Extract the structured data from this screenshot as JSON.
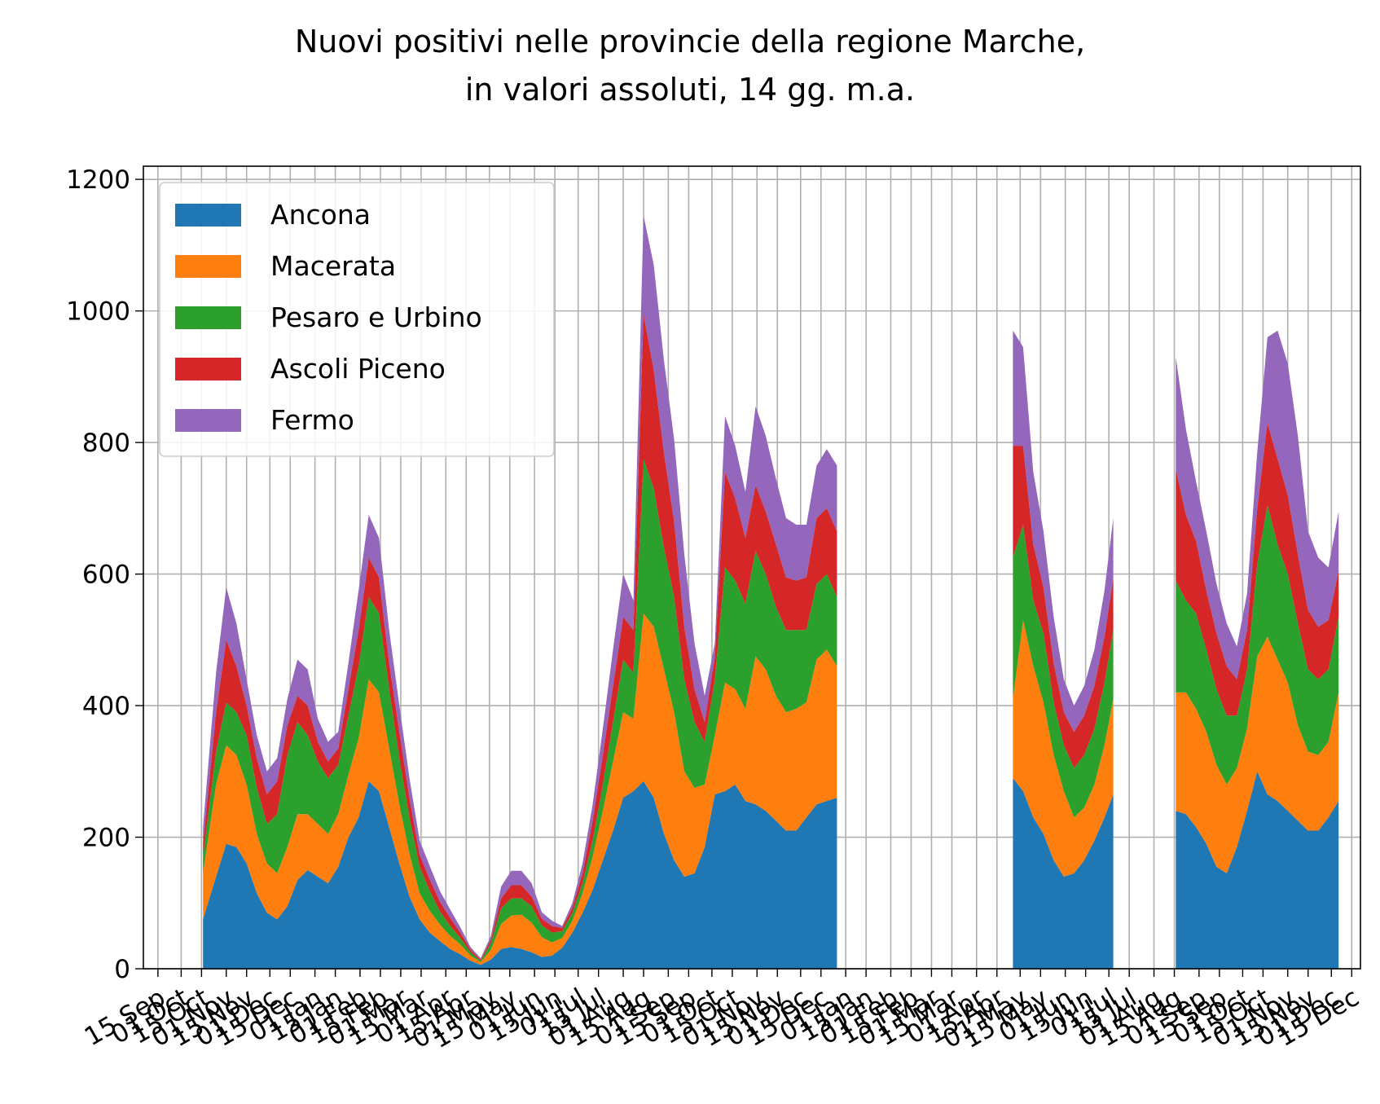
{
  "chart_data": {
    "type": "area",
    "stacked": true,
    "title": [
      "Nuovi positivi nelle provincie della regione Marche,",
      "in valori assoluti, 14 gg. m.a."
    ],
    "xlabel": "",
    "ylabel": "",
    "ylim": [
      0,
      1220
    ],
    "yticks": [
      0,
      200,
      400,
      600,
      800,
      1000,
      1200
    ],
    "xlim": [
      "2020-09-05",
      "2022-12-21"
    ],
    "grid": true,
    "legend_position": "upper-left",
    "x_ticks": [
      {
        "date": "2020-09-15",
        "label": "15 Sep"
      },
      {
        "date": "2020-10-01",
        "label": "01 Oct"
      },
      {
        "date": "2020-10-15",
        "label": "15 Oct"
      },
      {
        "date": "2020-11-01",
        "label": "01 Nov"
      },
      {
        "date": "2020-11-15",
        "label": "15 Nov"
      },
      {
        "date": "2020-12-01",
        "label": "01 Dec"
      },
      {
        "date": "2020-12-15",
        "label": "15 Dec"
      },
      {
        "date": "2021-01-01",
        "label": "01 Jan"
      },
      {
        "date": "2021-01-15",
        "label": "15 Jan"
      },
      {
        "date": "2021-02-01",
        "label": "01 Feb"
      },
      {
        "date": "2021-02-15",
        "label": "15 Feb"
      },
      {
        "date": "2021-03-01",
        "label": "01 Mar"
      },
      {
        "date": "2021-03-15",
        "label": "15 Mar"
      },
      {
        "date": "2021-04-01",
        "label": "01 Apr"
      },
      {
        "date": "2021-04-15",
        "label": "15 Apr"
      },
      {
        "date": "2021-05-01",
        "label": "01 May"
      },
      {
        "date": "2021-05-15",
        "label": "15 May"
      },
      {
        "date": "2021-06-01",
        "label": "01 Jun"
      },
      {
        "date": "2021-06-15",
        "label": "15 Jun"
      },
      {
        "date": "2021-07-01",
        "label": "01 Jul"
      },
      {
        "date": "2021-07-15",
        "label": "15 Jul"
      },
      {
        "date": "2021-08-01",
        "label": "01 Aug"
      },
      {
        "date": "2021-08-15",
        "label": "15 Aug"
      },
      {
        "date": "2021-09-01",
        "label": "01 Sep"
      },
      {
        "date": "2021-09-15",
        "label": "15 Sep"
      },
      {
        "date": "2021-10-01",
        "label": "01 Oct"
      },
      {
        "date": "2021-10-15",
        "label": "15 Oct"
      },
      {
        "date": "2021-11-01",
        "label": "01 Nov"
      },
      {
        "date": "2021-11-15",
        "label": "15 Nov"
      },
      {
        "date": "2021-12-01",
        "label": "01 Dec"
      },
      {
        "date": "2021-12-15",
        "label": "15 Dec"
      },
      {
        "date": "2022-01-01",
        "label": "01 Jan"
      },
      {
        "date": "2022-01-15",
        "label": "15 Jan"
      },
      {
        "date": "2022-02-01",
        "label": "01 Feb"
      },
      {
        "date": "2022-02-15",
        "label": "15 Feb"
      },
      {
        "date": "2022-03-01",
        "label": "01 Mar"
      },
      {
        "date": "2022-03-15",
        "label": "15 Mar"
      },
      {
        "date": "2022-04-01",
        "label": "01 Apr"
      },
      {
        "date": "2022-04-15",
        "label": "15 Apr"
      },
      {
        "date": "2022-05-01",
        "label": "01 May"
      },
      {
        "date": "2022-05-15",
        "label": "15 May"
      },
      {
        "date": "2022-06-01",
        "label": "01 Jun"
      },
      {
        "date": "2022-06-15",
        "label": "15 Jun"
      },
      {
        "date": "2022-07-01",
        "label": "01 Jul"
      },
      {
        "date": "2022-07-15",
        "label": "15 Jul"
      },
      {
        "date": "2022-08-01",
        "label": "01 Aug"
      },
      {
        "date": "2022-08-15",
        "label": "15 Aug"
      },
      {
        "date": "2022-09-01",
        "label": "01 Sep"
      },
      {
        "date": "2022-09-15",
        "label": "15 Sep"
      },
      {
        "date": "2022-10-01",
        "label": "01 Oct"
      },
      {
        "date": "2022-10-15",
        "label": "15 Oct"
      },
      {
        "date": "2022-11-01",
        "label": "01 Nov"
      },
      {
        "date": "2022-11-15",
        "label": "15 Nov"
      },
      {
        "date": "2022-12-01",
        "label": "01 Dec"
      },
      {
        "date": "2022-12-15",
        "label": "15 Dec"
      }
    ],
    "x": [
      "2020-10-16",
      "2020-10-25",
      "2020-11-01",
      "2020-11-08",
      "2020-11-15",
      "2020-11-22",
      "2020-11-29",
      "2020-12-06",
      "2020-12-13",
      "2020-12-20",
      "2020-12-27",
      "2021-01-03",
      "2021-01-10",
      "2021-01-17",
      "2021-01-24",
      "2021-01-31",
      "2021-02-07",
      "2021-02-14",
      "2021-02-21",
      "2021-02-28",
      "2021-03-07",
      "2021-03-14",
      "2021-03-21",
      "2021-03-28",
      "2021-04-04",
      "2021-04-11",
      "2021-04-18",
      "2021-04-25",
      "2021-05-02",
      "2021-05-09",
      "2021-05-16",
      "2021-05-23",
      "2021-05-30",
      "2021-06-06",
      "2021-06-13",
      "2021-06-20",
      "2021-06-27",
      "2021-07-04",
      "2021-07-11",
      "2021-07-18",
      "2021-07-25",
      "2021-08-01",
      "2021-08-08",
      "2021-08-15",
      "2021-08-22",
      "2021-08-29",
      "2021-09-05",
      "2021-09-12",
      "2021-09-19",
      "2021-09-26",
      "2021-10-03",
      "2021-10-10",
      "2021-10-17",
      "2021-10-24",
      "2021-10-31",
      "2021-11-07",
      "2021-11-14",
      "2021-11-21",
      "2021-11-28",
      "2021-12-05",
      "2021-12-12",
      "2021-12-19",
      "2021-12-26",
      "2022-04-26",
      "2022-05-03",
      "2022-05-10",
      "2022-05-17",
      "2022-05-24",
      "2022-05-31",
      "2022-06-07",
      "2022-06-14",
      "2022-06-21",
      "2022-06-28",
      "2022-07-04",
      "2022-08-16",
      "2022-08-23",
      "2022-08-30",
      "2022-09-06",
      "2022-09-13",
      "2022-09-20",
      "2022-09-27",
      "2022-10-04",
      "2022-10-11",
      "2022-10-18",
      "2022-10-25",
      "2022-11-01",
      "2022-11-08",
      "2022-11-15",
      "2022-11-22",
      "2022-11-29",
      "2022-12-06"
    ],
    "segments": [
      [
        0,
        62
      ],
      [
        63,
        73
      ],
      [
        74,
        90
      ]
    ],
    "series": [
      {
        "name": "Ancona",
        "color": "#1f77b4",
        "values": [
          75,
          140,
          190,
          185,
          160,
          115,
          85,
          75,
          95,
          135,
          150,
          140,
          130,
          155,
          200,
          230,
          285,
          270,
          215,
          160,
          110,
          75,
          55,
          42,
          30,
          22,
          12,
          6,
          14,
          30,
          33,
          30,
          25,
          18,
          20,
          32,
          55,
          85,
          120,
          165,
          210,
          260,
          270,
          285,
          260,
          205,
          165,
          140,
          145,
          185,
          265,
          270,
          280,
          255,
          250,
          240,
          225,
          210,
          210,
          230,
          250,
          255,
          260,
          290,
          270,
          230,
          205,
          165,
          140,
          145,
          165,
          195,
          230,
          265,
          240,
          235,
          215,
          190,
          155,
          145,
          185,
          240,
          300,
          265,
          255,
          240,
          225,
          210,
          210,
          230,
          255
        ]
      },
      {
        "name": "Macerata",
        "color": "#ff7f0e",
        "values": [
          70,
          140,
          150,
          140,
          120,
          90,
          75,
          70,
          90,
          100,
          85,
          80,
          75,
          80,
          95,
          120,
          155,
          150,
          120,
          90,
          65,
          40,
          33,
          25,
          20,
          15,
          8,
          4,
          15,
          38,
          48,
          52,
          45,
          30,
          20,
          15,
          18,
          30,
          50,
          75,
          105,
          130,
          110,
          255,
          260,
          250,
          225,
          160,
          130,
          95,
          90,
          165,
          145,
          140,
          225,
          215,
          190,
          180,
          185,
          175,
          220,
          230,
          200,
          120,
          260,
          230,
          200,
          160,
          130,
          85,
          80,
          85,
          110,
          145,
          180,
          185,
          180,
          170,
          155,
          135,
          120,
          125,
          175,
          240,
          215,
          195,
          145,
          120,
          115,
          115,
          165
        ]
      },
      {
        "name": "Pesaro e Urbino",
        "color": "#2ca02c",
        "values": [
          25,
          50,
          65,
          65,
          75,
          70,
          60,
          90,
          140,
          140,
          120,
          95,
          85,
          75,
          90,
          110,
          125,
          120,
          90,
          70,
          55,
          40,
          30,
          20,
          15,
          10,
          5,
          2,
          10,
          24,
          26,
          25,
          25,
          18,
          15,
          10,
          12,
          15,
          25,
          40,
          60,
          80,
          70,
          235,
          210,
          185,
          175,
          140,
          100,
          65,
          85,
          175,
          165,
          160,
          160,
          145,
          135,
          125,
          120,
          110,
          115,
          115,
          105,
          215,
          145,
          100,
          105,
          80,
          70,
          75,
          80,
          85,
          95,
          105,
          170,
          140,
          145,
          125,
          115,
          105,
          80,
          90,
          140,
          200,
          175,
          165,
          155,
          125,
          115,
          110,
          115
        ]
      },
      {
        "name": "Ascoli Piceno",
        "color": "#d62728",
        "values": [
          20,
          60,
          95,
          70,
          45,
          45,
          45,
          50,
          45,
          40,
          45,
          30,
          25,
          25,
          40,
          55,
          60,
          55,
          40,
          40,
          30,
          18,
          18,
          15,
          12,
          8,
          4,
          2,
          5,
          15,
          20,
          20,
          15,
          10,
          10,
          5,
          8,
          15,
          30,
          45,
          55,
          65,
          65,
          220,
          180,
          145,
          115,
          80,
          50,
          30,
          35,
          145,
          125,
          100,
          100,
          95,
          95,
          80,
          75,
          80,
          100,
          100,
          100,
          170,
          120,
          85,
          70,
          60,
          50,
          55,
          60,
          65,
          70,
          80,
          170,
          130,
          110,
          90,
          85,
          75,
          55,
          60,
          85,
          125,
          130,
          120,
          105,
          90,
          80,
          75,
          70
        ]
      },
      {
        "name": "Fermo",
        "color": "#9467bd",
        "values": [
          25,
          60,
          80,
          65,
          40,
          35,
          35,
          35,
          40,
          55,
          55,
          35,
          30,
          25,
          40,
          60,
          65,
          60,
          50,
          40,
          30,
          22,
          20,
          16,
          13,
          8,
          4,
          2,
          6,
          18,
          22,
          22,
          20,
          10,
          8,
          3,
          7,
          15,
          25,
          40,
          55,
          65,
          45,
          150,
          160,
          140,
          125,
          110,
          70,
          40,
          20,
          85,
          80,
          70,
          120,
          115,
          100,
          90,
          85,
          80,
          80,
          90,
          100,
          175,
          150,
          110,
          85,
          70,
          50,
          40,
          45,
          55,
          70,
          90,
          170,
          130,
          90,
          90,
          75,
          65,
          50,
          55,
          85,
          130,
          195,
          200,
          180,
          120,
          105,
          80,
          90
        ]
      }
    ]
  }
}
